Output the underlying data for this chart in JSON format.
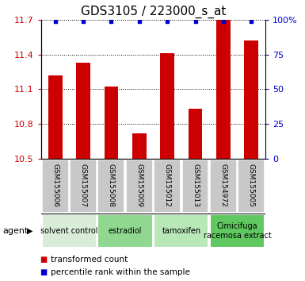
{
  "title": "GDS3105 / 223000_s_at",
  "samples": [
    "GSM155006",
    "GSM155007",
    "GSM155008",
    "GSM155009",
    "GSM155012",
    "GSM155013",
    "GSM154972",
    "GSM155005"
  ],
  "red_values": [
    11.22,
    11.33,
    11.12,
    10.72,
    11.41,
    10.93,
    11.7,
    11.52
  ],
  "blue_values": [
    99,
    99,
    99,
    99,
    99,
    99,
    99,
    99
  ],
  "ylim_left": [
    10.5,
    11.7
  ],
  "ylim_right": [
    0,
    100
  ],
  "yticks_left": [
    10.5,
    10.8,
    11.1,
    11.4,
    11.7
  ],
  "yticks_right": [
    0,
    25,
    50,
    75,
    100
  ],
  "ytick_labels_left": [
    "10.5",
    "10.8",
    "11.1",
    "11.4",
    "11.7"
  ],
  "ytick_labels_right": [
    "0",
    "25",
    "50",
    "75",
    "100%"
  ],
  "groups": [
    {
      "label": "solvent control",
      "start": 0,
      "end": 2,
      "color": "#d8ecd8"
    },
    {
      "label": "estradiol",
      "start": 2,
      "end": 4,
      "color": "#90d890"
    },
    {
      "label": "tamoxifen",
      "start": 4,
      "end": 6,
      "color": "#b8e8b8"
    },
    {
      "label": "Cimicifuga\nracemosa extract",
      "start": 6,
      "end": 8,
      "color": "#60c860"
    }
  ],
  "bar_color": "#cc0000",
  "dot_color": "#0000cc",
  "bar_width": 0.5,
  "legend_red": "transformed count",
  "legend_blue": "percentile rank within the sample",
  "agent_label": "agent",
  "title_fontsize": 11,
  "tick_fontsize": 8,
  "sample_fontsize": 6.5,
  "group_fontsize": 7,
  "legend_fontsize": 7.5
}
